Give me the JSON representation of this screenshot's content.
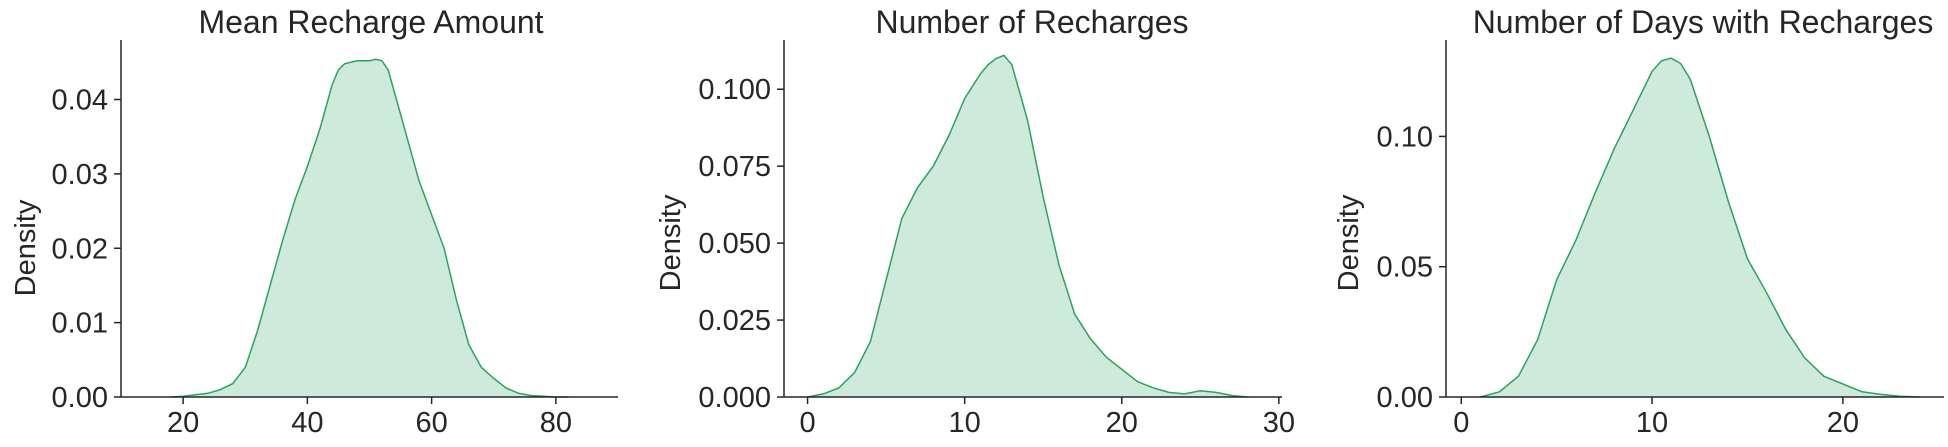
{
  "colors": {
    "line": "#2ca25f",
    "fill": "#cdeadb",
    "axis": "#262626",
    "background": "#ffffff"
  },
  "chart_data": [
    {
      "type": "area",
      "title": "Mean Recharge Amount",
      "xlabel": "",
      "ylabel": "Density",
      "xlim": [
        10,
        90
      ],
      "ylim": [
        0,
        0.048
      ],
      "xticks": [
        20,
        40,
        60,
        80
      ],
      "yticks": [
        0.0,
        0.01,
        0.02,
        0.03,
        0.04
      ],
      "ytick_labels": [
        "0.00",
        "0.01",
        "0.02",
        "0.03",
        "0.04"
      ],
      "grid": false,
      "series": [
        {
          "x": [
            18,
            20,
            22,
            24,
            26,
            28,
            30,
            32,
            34,
            36,
            38,
            40,
            42,
            44,
            45,
            46,
            48,
            50,
            51,
            52,
            53,
            54,
            56,
            58,
            60,
            62,
            64,
            66,
            68,
            70,
            72,
            74,
            76,
            78,
            80,
            82
          ],
          "y": [
            0.0,
            0.0001,
            0.0003,
            0.0005,
            0.001,
            0.0018,
            0.004,
            0.009,
            0.015,
            0.021,
            0.0265,
            0.031,
            0.036,
            0.042,
            0.044,
            0.0448,
            0.0452,
            0.0452,
            0.0454,
            0.0452,
            0.044,
            0.041,
            0.035,
            0.029,
            0.0245,
            0.02,
            0.013,
            0.007,
            0.004,
            0.0025,
            0.0012,
            0.0005,
            0.0002,
            0.0001,
            0.0,
            0.0
          ]
        }
      ]
    },
    {
      "type": "area",
      "title": "Number of Recharges",
      "xlabel": "",
      "ylabel": "Density",
      "xlim": [
        -1.5,
        30.2
      ],
      "ylim": [
        0,
        0.116
      ],
      "xticks": [
        0,
        10,
        20,
        30
      ],
      "yticks": [
        0.0,
        0.025,
        0.05,
        0.075,
        0.1
      ],
      "ytick_labels": [
        "0.000",
        "0.025",
        "0.050",
        "0.075",
        "0.100"
      ],
      "grid": false,
      "series": [
        {
          "x": [
            0,
            1,
            2,
            3,
            4,
            5,
            6,
            7,
            8,
            9,
            10,
            11,
            11.5,
            12,
            12.5,
            13,
            14,
            15,
            16,
            17,
            18,
            19,
            20,
            21,
            22,
            23,
            24,
            25,
            26,
            27,
            28
          ],
          "y": [
            0.0,
            0.001,
            0.003,
            0.008,
            0.018,
            0.038,
            0.058,
            0.068,
            0.075,
            0.085,
            0.097,
            0.105,
            0.108,
            0.11,
            0.111,
            0.108,
            0.09,
            0.065,
            0.043,
            0.027,
            0.019,
            0.013,
            0.009,
            0.005,
            0.003,
            0.0015,
            0.001,
            0.002,
            0.0015,
            0.0005,
            0.0
          ]
        }
      ]
    },
    {
      "type": "area",
      "title": "Number of Days with Recharges",
      "xlabel": "",
      "ylabel": "Density",
      "xlim": [
        -0.8,
        25.3
      ],
      "ylim": [
        0,
        0.137
      ],
      "xticks": [
        0,
        10,
        20
      ],
      "yticks": [
        0.0,
        0.05,
        0.1
      ],
      "ytick_labels": [
        "0.00",
        "0.05",
        "0.10"
      ],
      "grid": false,
      "series": [
        {
          "x": [
            1,
            2,
            3,
            4,
            5,
            6,
            7,
            8,
            9,
            10,
            10.5,
            11,
            11.5,
            12,
            13,
            14,
            15,
            16,
            17,
            18,
            19,
            20,
            21,
            22,
            23,
            24
          ],
          "y": [
            0.0,
            0.002,
            0.008,
            0.022,
            0.045,
            0.06,
            0.078,
            0.095,
            0.11,
            0.125,
            0.129,
            0.13,
            0.128,
            0.122,
            0.1,
            0.075,
            0.053,
            0.04,
            0.026,
            0.015,
            0.008,
            0.005,
            0.002,
            0.001,
            0.0003,
            0.0
          ]
        }
      ]
    }
  ]
}
